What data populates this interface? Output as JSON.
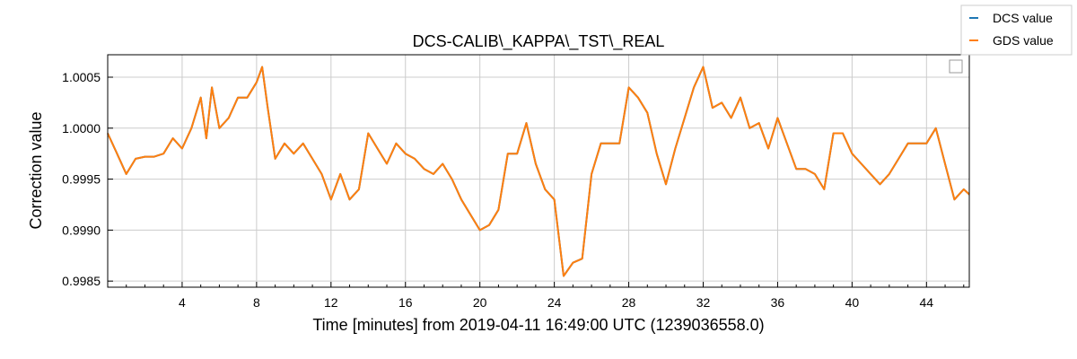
{
  "chart_data": {
    "type": "line",
    "title": "DCS-CALIB\\_KAPPA\\_TST\\_REAL",
    "xlabel": "Time [minutes] from 2019-04-11 16:49:00 UTC (1239036558.0)",
    "ylabel": "Correction value",
    "xlim": [
      0,
      46.3
    ],
    "ylim": [
      0.99844,
      1.00072
    ],
    "xticks": [
      4,
      8,
      12,
      16,
      20,
      24,
      28,
      32,
      36,
      40,
      44
    ],
    "xtick_labels": [
      "4",
      "8",
      "12",
      "16",
      "20",
      "24",
      "28",
      "32",
      "36",
      "40",
      "44"
    ],
    "yticks": [
      0.9985,
      0.999,
      0.9995,
      1.0,
      1.0005
    ],
    "ytick_labels": [
      "0.9985",
      "0.9990",
      "0.9995",
      "1.0000",
      "1.0005"
    ],
    "grid": true,
    "legend": {
      "placement": "top-right, outside axes",
      "entries": [
        "DCS value",
        "GDS value"
      ]
    },
    "x": [
      0,
      0.5,
      1.0,
      1.5,
      2.0,
      2.5,
      3.0,
      3.5,
      4.0,
      4.5,
      5.0,
      5.3,
      5.6,
      6.0,
      6.5,
      7.0,
      7.5,
      8.0,
      8.3,
      8.6,
      9.0,
      9.5,
      10.0,
      10.5,
      11.0,
      11.5,
      12.0,
      12.5,
      13.0,
      13.5,
      14.0,
      14.5,
      15.0,
      15.5,
      16.0,
      16.5,
      17.0,
      17.5,
      18.0,
      18.5,
      19.0,
      19.5,
      20.0,
      20.5,
      21.0,
      21.5,
      22.0,
      22.5,
      23.0,
      23.5,
      24.0,
      24.5,
      25.0,
      25.5,
      26.0,
      26.5,
      27.0,
      27.5,
      28.0,
      28.5,
      29.0,
      29.5,
      30.0,
      30.5,
      31.0,
      31.5,
      32.0,
      32.5,
      33.0,
      33.5,
      34.0,
      34.5,
      35.0,
      35.5,
      36.0,
      36.5,
      37.0,
      37.5,
      38.0,
      38.5,
      39.0,
      39.5,
      40.0,
      40.5,
      41.0,
      41.5,
      42.0,
      42.5,
      43.0,
      43.5,
      44.0,
      44.5,
      45.0,
      45.5,
      46.0,
      46.3
    ],
    "series": [
      {
        "name": "DCS value",
        "color": "#1f77b4",
        "values": [
          0.99995,
          0.99975,
          0.99955,
          0.9997,
          0.99972,
          0.99972,
          0.99975,
          0.9999,
          0.9998,
          1.0,
          1.0003,
          0.9999,
          1.0004,
          1.0,
          1.0001,
          1.0003,
          1.0003,
          1.00045,
          1.0006,
          1.0002,
          0.9997,
          0.99985,
          0.99975,
          0.99985,
          0.9997,
          0.99955,
          0.9993,
          0.99955,
          0.9993,
          0.9994,
          0.99995,
          0.9998,
          0.99965,
          0.99985,
          0.99975,
          0.9997,
          0.9996,
          0.99955,
          0.99965,
          0.9995,
          0.9993,
          0.99915,
          0.999,
          0.99905,
          0.9992,
          0.99975,
          0.99975,
          1.00005,
          0.99965,
          0.9994,
          0.9993,
          0.99855,
          0.99868,
          0.99872,
          0.99955,
          0.99985,
          0.99985,
          0.99985,
          1.0004,
          1.0003,
          1.00015,
          0.99975,
          0.99945,
          0.9998,
          1.0001,
          1.0004,
          1.0006,
          1.0002,
          1.00025,
          1.0001,
          1.0003,
          1.0,
          1.00005,
          0.9998,
          1.0001,
          0.99985,
          0.9996,
          0.9996,
          0.99955,
          0.9994,
          0.99995,
          0.99995,
          0.99975,
          0.99965,
          0.99955,
          0.99945,
          0.99955,
          0.9997,
          0.99985,
          0.99985,
          0.99985,
          1.0,
          0.99965,
          0.9993,
          0.9994,
          0.99935
        ]
      },
      {
        "name": "GDS value",
        "color": "#ff7f0e",
        "values": [
          0.99995,
          0.99975,
          0.99955,
          0.9997,
          0.99972,
          0.99972,
          0.99975,
          0.9999,
          0.9998,
          1.0,
          1.0003,
          0.9999,
          1.0004,
          1.0,
          1.0001,
          1.0003,
          1.0003,
          1.00045,
          1.0006,
          1.0002,
          0.9997,
          0.99985,
          0.99975,
          0.99985,
          0.9997,
          0.99955,
          0.9993,
          0.99955,
          0.9993,
          0.9994,
          0.99995,
          0.9998,
          0.99965,
          0.99985,
          0.99975,
          0.9997,
          0.9996,
          0.99955,
          0.99965,
          0.9995,
          0.9993,
          0.99915,
          0.999,
          0.99905,
          0.9992,
          0.99975,
          0.99975,
          1.00005,
          0.99965,
          0.9994,
          0.9993,
          0.99855,
          0.99868,
          0.99872,
          0.99955,
          0.99985,
          0.99985,
          0.99985,
          1.0004,
          1.0003,
          1.00015,
          0.99975,
          0.99945,
          0.9998,
          1.0001,
          1.0004,
          1.0006,
          1.0002,
          1.00025,
          1.0001,
          1.0003,
          1.0,
          1.00005,
          0.9998,
          1.0001,
          0.99985,
          0.9996,
          0.9996,
          0.99955,
          0.9994,
          0.99995,
          0.99995,
          0.99975,
          0.99965,
          0.99955,
          0.99945,
          0.99955,
          0.9997,
          0.99985,
          0.99985,
          0.99985,
          1.0,
          0.99965,
          0.9993,
          0.9994,
          0.99935
        ]
      }
    ]
  }
}
